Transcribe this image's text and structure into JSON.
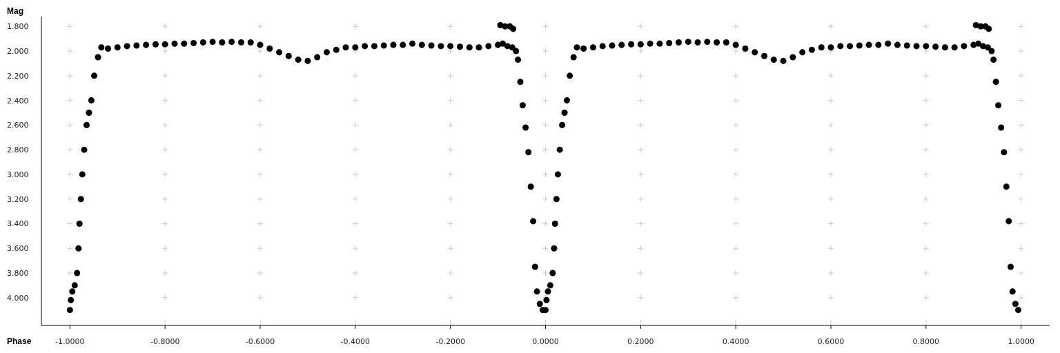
{
  "chart_data": {
    "type": "scatter",
    "xlabel": "Phase",
    "ylabel": "Mag",
    "marker": "circle",
    "grid": true,
    "xlim": [
      -1.06,
      1.06
    ],
    "ylim": [
      4.225,
      1.72
    ],
    "xticks": [
      {
        "value": -1,
        "label": "-1.0000"
      },
      {
        "value": -0.8,
        "label": "-0.8000"
      },
      {
        "value": -0.6,
        "label": "-0.6000"
      },
      {
        "value": -0.4,
        "label": "-0.4000"
      },
      {
        "value": -0.2,
        "label": "-0.2000"
      },
      {
        "value": 0,
        "label": "0.0000"
      },
      {
        "value": 0.2,
        "label": "0.2000"
      },
      {
        "value": 0.4,
        "label": "0.4000"
      },
      {
        "value": 0.6,
        "label": "0.6000"
      },
      {
        "value": 0.8,
        "label": "0.8000"
      },
      {
        "value": 1,
        "label": "1.0000"
      }
    ],
    "yticks": [
      {
        "value": 1.8,
        "label": "1.800"
      },
      {
        "value": 2,
        "label": "2.000"
      },
      {
        "value": 2.2,
        "label": "2.200"
      },
      {
        "value": 2.4,
        "label": "2.400"
      },
      {
        "value": 2.6,
        "label": "2.600"
      },
      {
        "value": 2.8,
        "label": "2.800"
      },
      {
        "value": 3,
        "label": "3.000"
      },
      {
        "value": 3.2,
        "label": "3.200"
      },
      {
        "value": 3.4,
        "label": "3.400"
      },
      {
        "value": 3.6,
        "label": "3.600"
      },
      {
        "value": 3.8,
        "label": "3.800"
      },
      {
        "value": 4,
        "label": "4.000"
      }
    ],
    "series": [
      {
        "color": "#000000",
        "x": [
          -1.0,
          -0.998,
          -0.995,
          -0.99,
          -0.985,
          -0.982,
          -0.98,
          -0.977,
          -0.974,
          -0.97,
          -0.965,
          -0.96,
          -0.955,
          -0.949,
          -0.941,
          -0.934,
          -0.92,
          -0.9,
          -0.88,
          -0.86,
          -0.84,
          -0.82,
          -0.8,
          -0.78,
          -0.76,
          -0.74,
          -0.72,
          -0.7,
          -0.68,
          -0.66,
          -0.64,
          -0.62,
          -0.6,
          -0.58,
          -0.56,
          -0.54,
          -0.52,
          -0.5,
          -0.48,
          -0.46,
          -0.44,
          -0.42,
          -0.4,
          -0.38,
          -0.36,
          -0.34,
          -0.32,
          -0.3,
          -0.28,
          -0.26,
          -0.24,
          -0.22,
          -0.2,
          -0.18,
          -0.16,
          -0.14,
          -0.12,
          -0.1,
          -0.095,
          -0.09,
          -0.085,
          -0.08,
          -0.075,
          -0.07,
          -0.068,
          -0.062,
          -0.058,
          -0.053,
          -0.048,
          -0.042,
          -0.036,
          -0.031,
          -0.026,
          -0.022,
          -0.018,
          -0.012,
          -0.006,
          0.0,
          0.002,
          0.005,
          0.01,
          0.015,
          0.018,
          0.02,
          0.023,
          0.026,
          0.03,
          0.035,
          0.04,
          0.045,
          0.051,
          0.059,
          0.066,
          0.08,
          0.1,
          0.12,
          0.14,
          0.16,
          0.18,
          0.2,
          0.22,
          0.24,
          0.26,
          0.28,
          0.3,
          0.32,
          0.34,
          0.36,
          0.38,
          0.4,
          0.42,
          0.44,
          0.46,
          0.48,
          0.5,
          0.52,
          0.54,
          0.56,
          0.58,
          0.6,
          0.62,
          0.64,
          0.66,
          0.68,
          0.7,
          0.72,
          0.74,
          0.76,
          0.78,
          0.8,
          0.82,
          0.84,
          0.86,
          0.88,
          0.9,
          0.905,
          0.91,
          0.915,
          0.92,
          0.925,
          0.93,
          0.932,
          0.938,
          0.942,
          0.947,
          0.952,
          0.958,
          0.964,
          0.969,
          0.974,
          0.978,
          0.982,
          0.988,
          0.994
        ],
        "values": [
          4.1,
          4.02,
          3.95,
          3.9,
          3.8,
          3.6,
          3.4,
          3.2,
          3.0,
          2.8,
          2.6,
          2.5,
          2.4,
          2.2,
          2.05,
          1.97,
          1.98,
          1.97,
          1.96,
          1.955,
          1.95,
          1.945,
          1.945,
          1.94,
          1.94,
          1.935,
          1.93,
          1.925,
          1.93,
          1.925,
          1.93,
          1.93,
          1.95,
          1.98,
          2.01,
          2.04,
          2.07,
          2.08,
          2.05,
          2.01,
          1.99,
          1.97,
          1.97,
          1.96,
          1.96,
          1.955,
          1.95,
          1.95,
          1.94,
          1.95,
          1.955,
          1.96,
          1.96,
          1.965,
          1.97,
          1.97,
          1.96,
          1.95,
          1.79,
          1.94,
          1.8,
          1.96,
          1.8,
          1.97,
          1.82,
          2.0,
          2.07,
          2.25,
          2.44,
          2.62,
          2.82,
          3.1,
          3.38,
          3.75,
          3.95,
          4.05,
          4.1,
          4.1,
          4.02,
          3.95,
          3.9,
          3.8,
          3.6,
          3.4,
          3.2,
          3.0,
          2.8,
          2.6,
          2.5,
          2.4,
          2.2,
          2.05,
          1.97,
          1.98,
          1.97,
          1.96,
          1.955,
          1.95,
          1.945,
          1.945,
          1.94,
          1.94,
          1.935,
          1.93,
          1.925,
          1.93,
          1.925,
          1.93,
          1.93,
          1.95,
          1.98,
          2.01,
          2.04,
          2.07,
          2.08,
          2.05,
          2.01,
          1.99,
          1.97,
          1.97,
          1.96,
          1.96,
          1.955,
          1.95,
          1.95,
          1.94,
          1.95,
          1.955,
          1.96,
          1.96,
          1.965,
          1.97,
          1.97,
          1.96,
          1.95,
          1.79,
          1.94,
          1.8,
          1.96,
          1.8,
          1.97,
          1.82,
          2.0,
          2.07,
          2.25,
          2.44,
          2.62,
          2.82,
          3.1,
          3.38,
          3.75,
          3.95,
          4.05,
          4.1
        ]
      }
    ]
  }
}
